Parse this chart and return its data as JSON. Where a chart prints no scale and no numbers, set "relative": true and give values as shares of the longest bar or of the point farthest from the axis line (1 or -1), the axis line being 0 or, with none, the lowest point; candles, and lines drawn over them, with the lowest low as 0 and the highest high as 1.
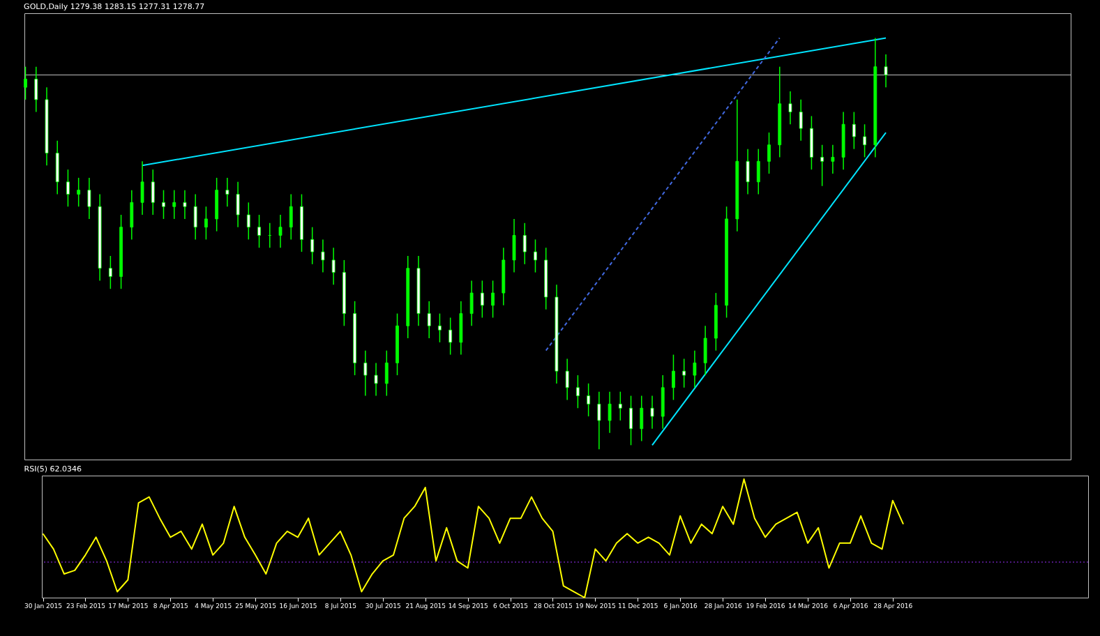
{
  "chart_data": [
    {
      "type": "candlestick",
      "title": "GOLD,Daily 1279.38 1283.15 1277.31 1278.77",
      "relative": true,
      "color": "#00ff00",
      "tick_labels": false,
      "categories": [
        null,
        null,
        null,
        null,
        null,
        null,
        null,
        null,
        null,
        null,
        null,
        null,
        null,
        null,
        null,
        null,
        null,
        null,
        null,
        null,
        null,
        null,
        null,
        null,
        null,
        null,
        null,
        null,
        null,
        null,
        null,
        null,
        null,
        null,
        null,
        null,
        null,
        null,
        null,
        null,
        null,
        null,
        null,
        null,
        null,
        null,
        null,
        null,
        null,
        null,
        null,
        null,
        null,
        null,
        null,
        null,
        null,
        null,
        null,
        null,
        null,
        null,
        null,
        null,
        null,
        null,
        null,
        null,
        null,
        null,
        null,
        null,
        null,
        null,
        null,
        null,
        null,
        null,
        null,
        null,
        null,
        null
      ],
      "ohlc": [
        [
          0.88,
          0.93,
          0.85,
          0.9
        ],
        [
          0.9,
          0.93,
          0.82,
          0.85
        ],
        [
          0.85,
          0.88,
          0.69,
          0.72
        ],
        [
          0.72,
          0.75,
          0.62,
          0.65
        ],
        [
          0.65,
          0.68,
          0.59,
          0.62
        ],
        [
          0.62,
          0.66,
          0.59,
          0.63
        ],
        [
          0.63,
          0.66,
          0.56,
          0.59
        ],
        [
          0.59,
          0.62,
          0.41,
          0.44
        ],
        [
          0.44,
          0.47,
          0.39,
          0.42
        ],
        [
          0.42,
          0.57,
          0.39,
          0.54
        ],
        [
          0.54,
          0.63,
          0.51,
          0.6
        ],
        [
          0.6,
          0.7,
          0.57,
          0.65
        ],
        [
          0.65,
          0.68,
          0.57,
          0.6
        ],
        [
          0.6,
          0.63,
          0.56,
          0.59
        ],
        [
          0.59,
          0.63,
          0.56,
          0.6
        ],
        [
          0.6,
          0.63,
          0.56,
          0.59
        ],
        [
          0.59,
          0.62,
          0.51,
          0.54
        ],
        [
          0.54,
          0.59,
          0.51,
          0.56
        ],
        [
          0.56,
          0.66,
          0.53,
          0.63
        ],
        [
          0.63,
          0.66,
          0.59,
          0.62
        ],
        [
          0.62,
          0.65,
          0.54,
          0.57
        ],
        [
          0.57,
          0.6,
          0.51,
          0.54
        ],
        [
          0.54,
          0.57,
          0.49,
          0.52
        ],
        [
          0.52,
          0.55,
          0.49,
          0.52
        ],
        [
          0.52,
          0.57,
          0.49,
          0.54
        ],
        [
          0.54,
          0.62,
          0.51,
          0.59
        ],
        [
          0.59,
          0.62,
          0.48,
          0.51
        ],
        [
          0.51,
          0.54,
          0.45,
          0.48
        ],
        [
          0.48,
          0.51,
          0.43,
          0.46
        ],
        [
          0.46,
          0.49,
          0.4,
          0.43
        ],
        [
          0.43,
          0.46,
          0.3,
          0.33
        ],
        [
          0.33,
          0.36,
          0.18,
          0.21
        ],
        [
          0.21,
          0.24,
          0.13,
          0.18
        ],
        [
          0.18,
          0.21,
          0.13,
          0.16
        ],
        [
          0.16,
          0.24,
          0.13,
          0.21
        ],
        [
          0.21,
          0.33,
          0.18,
          0.3
        ],
        [
          0.3,
          0.47,
          0.27,
          0.44
        ],
        [
          0.44,
          0.47,
          0.3,
          0.33
        ],
        [
          0.33,
          0.36,
          0.27,
          0.3
        ],
        [
          0.3,
          0.33,
          0.26,
          0.29
        ],
        [
          0.29,
          0.32,
          0.23,
          0.26
        ],
        [
          0.26,
          0.36,
          0.23,
          0.33
        ],
        [
          0.33,
          0.41,
          0.3,
          0.38
        ],
        [
          0.38,
          0.41,
          0.32,
          0.35
        ],
        [
          0.35,
          0.41,
          0.32,
          0.38
        ],
        [
          0.38,
          0.49,
          0.35,
          0.46
        ],
        [
          0.46,
          0.56,
          0.43,
          0.52
        ],
        [
          0.52,
          0.55,
          0.45,
          0.48
        ],
        [
          0.48,
          0.51,
          0.43,
          0.46
        ],
        [
          0.46,
          0.49,
          0.34,
          0.37
        ],
        [
          0.37,
          0.4,
          0.16,
          0.19
        ],
        [
          0.19,
          0.22,
          0.12,
          0.15
        ],
        [
          0.15,
          0.18,
          0.1,
          0.13
        ],
        [
          0.13,
          0.16,
          0.08,
          0.11
        ],
        [
          0.11,
          0.14,
          0.0,
          0.07
        ],
        [
          0.07,
          0.14,
          0.04,
          0.11
        ],
        [
          0.11,
          0.14,
          0.07,
          0.1
        ],
        [
          0.1,
          0.13,
          0.01,
          0.05
        ],
        [
          0.05,
          0.13,
          0.02,
          0.1
        ],
        [
          0.1,
          0.13,
          0.05,
          0.08
        ],
        [
          0.08,
          0.18,
          0.05,
          0.15
        ],
        [
          0.15,
          0.23,
          0.12,
          0.19
        ],
        [
          0.19,
          0.22,
          0.15,
          0.18
        ],
        [
          0.18,
          0.24,
          0.15,
          0.21
        ],
        [
          0.21,
          0.3,
          0.18,
          0.27
        ],
        [
          0.27,
          0.38,
          0.24,
          0.35
        ],
        [
          0.35,
          0.59,
          0.32,
          0.56
        ],
        [
          0.56,
          0.85,
          0.53,
          0.7
        ],
        [
          0.7,
          0.73,
          0.62,
          0.65
        ],
        [
          0.65,
          0.73,
          0.62,
          0.7
        ],
        [
          0.7,
          0.77,
          0.67,
          0.74
        ],
        [
          0.74,
          0.93,
          0.71,
          0.84
        ],
        [
          0.84,
          0.87,
          0.79,
          0.82
        ],
        [
          0.82,
          0.85,
          0.75,
          0.78
        ],
        [
          0.78,
          0.81,
          0.68,
          0.71
        ],
        [
          0.71,
          0.74,
          0.64,
          0.7
        ],
        [
          0.7,
          0.74,
          0.67,
          0.71
        ],
        [
          0.71,
          0.82,
          0.68,
          0.79
        ],
        [
          0.79,
          0.82,
          0.73,
          0.76
        ],
        [
          0.76,
          0.79,
          0.71,
          0.74
        ],
        [
          0.74,
          1.0,
          0.71,
          0.93
        ],
        [
          0.93,
          0.96,
          0.88,
          0.91
        ]
      ],
      "series": [
        {
          "type": "line",
          "color": "#00e5ff",
          "line_style": "solid",
          "values": [
            null,
            null,
            null,
            null,
            null,
            null,
            null,
            null,
            null,
            null,
            null,
            0.69,
            null,
            null,
            null,
            null,
            null,
            null,
            null,
            null,
            null,
            null,
            null,
            null,
            null,
            null,
            null,
            null,
            null,
            null,
            null,
            null,
            null,
            null,
            null,
            null,
            null,
            null,
            null,
            null,
            null,
            null,
            null,
            null,
            null,
            null,
            null,
            null,
            null,
            null,
            null,
            null,
            null,
            null,
            null,
            null,
            null,
            null,
            null,
            null,
            null,
            null,
            null,
            null,
            null,
            null,
            null,
            null,
            null,
            null,
            null,
            null,
            null,
            null,
            null,
            null,
            null,
            null,
            null,
            null,
            null,
            1.0
          ]
        },
        {
          "type": "line",
          "color": "#00e5ff",
          "line_style": "solid",
          "values": [
            null,
            null,
            null,
            null,
            null,
            null,
            null,
            null,
            null,
            null,
            null,
            null,
            null,
            null,
            null,
            null,
            null,
            null,
            null,
            null,
            null,
            null,
            null,
            null,
            null,
            null,
            null,
            null,
            null,
            null,
            null,
            null,
            null,
            null,
            null,
            null,
            null,
            null,
            null,
            null,
            null,
            null,
            null,
            null,
            null,
            null,
            null,
            null,
            null,
            null,
            null,
            null,
            null,
            null,
            null,
            null,
            null,
            null,
            null,
            0.01,
            null,
            null,
            null,
            null,
            null,
            null,
            null,
            null,
            null,
            null,
            null,
            null,
            null,
            null,
            null,
            null,
            null,
            null,
            null,
            null,
            null,
            0.77
          ]
        },
        {
          "type": "line",
          "color": "#4169e1",
          "line_style": "dashed",
          "values": [
            null,
            null,
            null,
            null,
            null,
            null,
            null,
            null,
            null,
            null,
            null,
            null,
            null,
            null,
            null,
            null,
            null,
            null,
            null,
            null,
            null,
            null,
            null,
            null,
            null,
            null,
            null,
            null,
            null,
            null,
            null,
            null,
            null,
            null,
            null,
            null,
            null,
            null,
            null,
            null,
            null,
            null,
            null,
            null,
            null,
            null,
            null,
            null,
            null,
            0.24,
            null,
            null,
            null,
            null,
            null,
            null,
            null,
            null,
            null,
            null,
            null,
            null,
            null,
            null,
            null,
            null,
            null,
            null,
            null,
            null,
            null,
            1.0,
            null,
            null,
            null,
            null,
            null,
            null,
            null,
            null,
            null,
            null
          ]
        }
      ],
      "ref_lines": [
        {
          "axis": "y",
          "value": 0.91,
          "color": "#c0c0c0"
        }
      ]
    },
    {
      "type": "line",
      "title": "RSI(5) 62.0346",
      "relative": true,
      "tick_labels": "x",
      "categories": [
        "30 Jan 2015",
        null,
        null,
        null,
        "23 Feb 2015",
        null,
        null,
        null,
        "17 Mar 2015",
        null,
        null,
        null,
        "8 Apr 2015",
        null,
        null,
        null,
        "4 May 2015",
        null,
        null,
        null,
        "25 May 2015",
        null,
        null,
        null,
        "16 Jun 2015",
        null,
        null,
        null,
        "8 Jul 2015",
        null,
        null,
        null,
        "30 Jul 2015",
        null,
        null,
        null,
        "21 Aug 2015",
        null,
        null,
        null,
        "14 Sep 2015",
        null,
        null,
        null,
        "6 Oct 2015",
        null,
        null,
        null,
        "28 Oct 2015",
        null,
        null,
        null,
        "19 Nov 2015",
        null,
        null,
        null,
        "11 Dec 2015",
        null,
        null,
        null,
        "6 Jan 2016",
        null,
        null,
        null,
        "28 Jan 2016",
        null,
        null,
        null,
        "19 Feb 2016",
        null,
        null,
        null,
        "14 Mar 2016",
        null,
        null,
        null,
        "6 Apr 2016",
        null,
        null,
        null,
        "28 Apr 2016",
        null
      ],
      "series": [
        {
          "color": "#ffff00",
          "line_style": "solid",
          "values": [
            0.54,
            0.41,
            0.2,
            0.23,
            0.36,
            0.51,
            0.31,
            0.05,
            0.15,
            0.8,
            0.85,
            0.67,
            0.51,
            0.56,
            0.41,
            0.62,
            0.36,
            0.46,
            0.77,
            0.51,
            0.36,
            0.2,
            0.46,
            0.56,
            0.51,
            0.67,
            0.36,
            0.46,
            0.56,
            0.36,
            0.05,
            0.2,
            0.31,
            0.36,
            0.67,
            0.77,
            0.93,
            0.31,
            0.59,
            0.31,
            0.25,
            0.77,
            0.67,
            0.46,
            0.67,
            0.67,
            0.85,
            0.67,
            0.56,
            0.1,
            0.05,
            0,
            0.41,
            0.31,
            0.46,
            0.54,
            0.46,
            0.51,
            0.46,
            0.36,
            0.69,
            0.46,
            0.62,
            0.54,
            0.77,
            0.62,
            1,
            0.67,
            0.51,
            0.62,
            0.67,
            0.72,
            0.46,
            0.59,
            0.25,
            0.46,
            0.46,
            0.69,
            0.46,
            0.41,
            0.82,
            0.62
          ]
        }
      ],
      "ref_lines": [
        {
          "axis": "y",
          "value": 0.3,
          "color": "#9b30ff",
          "line_style": "dotted"
        }
      ]
    }
  ]
}
